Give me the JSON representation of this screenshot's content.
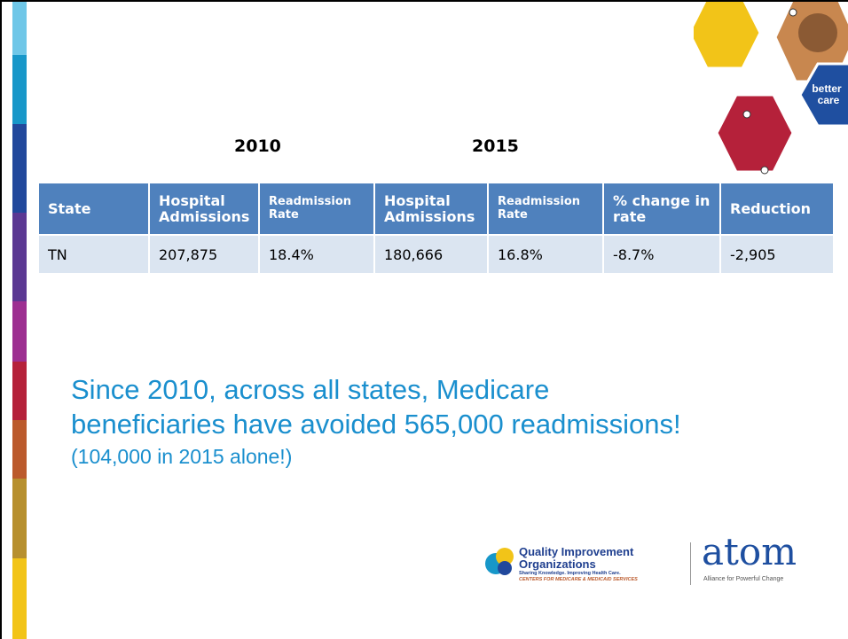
{
  "years": [
    "2010",
    "2015"
  ],
  "table": {
    "header": [
      "State",
      "Hospital Admissions",
      "Readmission Rate",
      "Hospital Admissions",
      "Readmission Rate",
      "% change in rate",
      "Reduction"
    ],
    "rows": [
      [
        "TN",
        "207,875",
        "18.4%",
        "180,666",
        "16.8%",
        "-8.7%",
        "-2,905"
      ]
    ]
  },
  "message": {
    "lines": [
      "Since 2010, across all states, Medicare",
      "beneficiaries have avoided 565,000 readmissions!"
    ],
    "note": "(104,000 in 2015 alone!)"
  },
  "badge": {
    "lines": [
      "better",
      "care"
    ]
  },
  "logos": {
    "qio_name": [
      "Quality Improvement",
      "Organizations"
    ],
    "qio_tagline": "Sharing Knowledge. Improving Health Care.",
    "qio_cms": "CENTERS FOR MEDICARE & MEDICAID SERVICES",
    "atom": "atom",
    "atom_tagline": "Alliance for Powerful Change"
  }
}
